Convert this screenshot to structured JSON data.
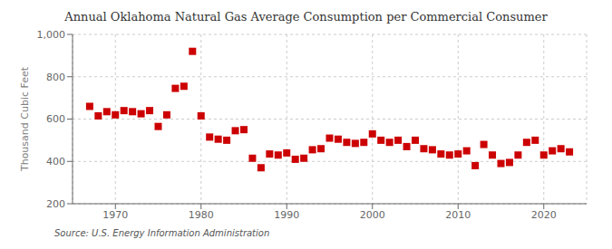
{
  "chart_data": {
    "type": "scatter",
    "title": "Annual Oklahoma Natural Gas Average Consumption per Commercial Consumer",
    "ylabel": "Thousand Cubic Feet",
    "annotations": [
      "Source: U.S. Energy Information Administration"
    ],
    "x": [
      1967,
      1968,
      1969,
      1970,
      1971,
      1972,
      1973,
      1974,
      1975,
      1976,
      1977,
      1978,
      1979,
      1980,
      1981,
      1982,
      1983,
      1984,
      1985,
      1986,
      1987,
      1988,
      1989,
      1990,
      1991,
      1992,
      1993,
      1994,
      1995,
      1996,
      1997,
      1998,
      1999,
      2000,
      2001,
      2002,
      2003,
      2004,
      2005,
      2006,
      2007,
      2008,
      2009,
      2010,
      2011,
      2012,
      2013,
      2014,
      2015,
      2016,
      2017,
      2018,
      2019,
      2020,
      2021,
      2022,
      2023
    ],
    "values": [
      660,
      615,
      635,
      620,
      640,
      635,
      625,
      640,
      565,
      620,
      745,
      755,
      920,
      615,
      515,
      505,
      500,
      545,
      550,
      415,
      370,
      435,
      430,
      440,
      410,
      415,
      455,
      460,
      510,
      505,
      490,
      485,
      490,
      530,
      500,
      490,
      500,
      470,
      500,
      460,
      455,
      435,
      430,
      435,
      450,
      380,
      480,
      430,
      390,
      395,
      430,
      490,
      500,
      430,
      450,
      460,
      445
    ],
    "color": "#cc0000",
    "marker": "square",
    "xlim": [
      1965,
      2025
    ],
    "xticks": [
      1970,
      1980,
      1990,
      2000,
      2010,
      2020
    ],
    "ylim": [
      200,
      1000
    ],
    "yticks": [
      200,
      400,
      600,
      800,
      {
        "value": 1000,
        "label": "1,000"
      }
    ],
    "grid": true
  }
}
